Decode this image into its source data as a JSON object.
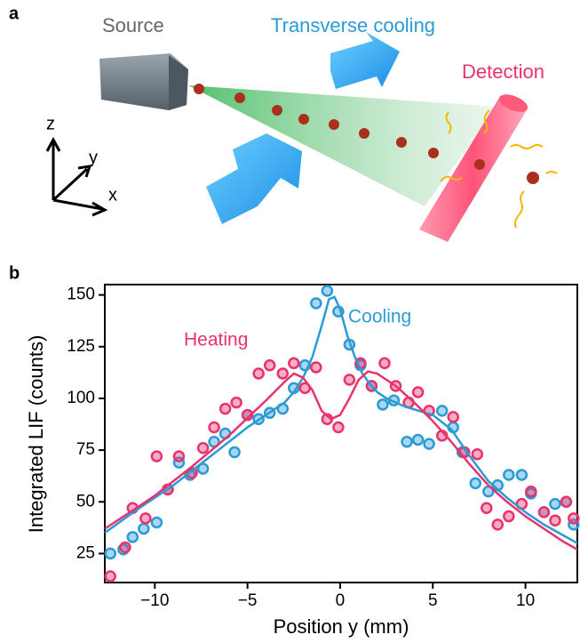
{
  "panel_a": {
    "label": "a",
    "source": "Source",
    "cooling": "Transverse cooling",
    "detection": "Detection",
    "axis_z": "z",
    "axis_y": "y",
    "axis_x": "x"
  },
  "chart_data": {
    "type": "scatter",
    "panel_label": "b",
    "x_label": "Position y (mm)",
    "y_label": "Integrated LIF (counts)",
    "xlim": [
      -12.7,
      12.8
    ],
    "ylim": [
      11,
      155
    ],
    "xticks": [
      {
        "value": -10,
        "label": "−10"
      },
      {
        "value": -5,
        "label": "−5"
      },
      0,
      5,
      10
    ],
    "yticks": [
      25,
      50,
      75,
      100,
      125,
      150
    ],
    "series": [
      {
        "name": "Cooling",
        "color": "#2b9bd6",
        "x": [
          -12.4,
          -11.7,
          -11.2,
          -10.6,
          -9.9,
          -9.3,
          -8.7,
          -8.1,
          -7.4,
          -6.8,
          -6.2,
          -5.7,
          -5.0,
          -4.4,
          -3.8,
          -3.1,
          -2.5,
          -1.9,
          -1.3,
          -0.7,
          -0.1,
          0.5,
          1.1,
          1.7,
          2.3,
          2.9,
          3.6,
          4.2,
          4.8,
          5.5,
          6.1,
          6.6,
          7.3,
          8.0,
          8.5,
          9.1,
          9.8,
          10.3,
          11.0,
          11.6,
          12.2,
          12.6
        ],
        "values": [
          25,
          27,
          33,
          37,
          40,
          56,
          69,
          63,
          66,
          79,
          83,
          74,
          92,
          90,
          93,
          95,
          105,
          116,
          146,
          152,
          142,
          126,
          116,
          106,
          97,
          99,
          79,
          80,
          78,
          94,
          86,
          74,
          59,
          55,
          58,
          63,
          63,
          54,
          45,
          49,
          50,
          39
        ],
        "fit_x": [
          -12.7,
          -11,
          -10,
          -9,
          -7,
          -5,
          -4,
          -3,
          -2.5,
          -2,
          -1.5,
          -1,
          -0.6,
          -0.3,
          0,
          0.4,
          0.8,
          1.2,
          1.6,
          2,
          2.5,
          3.5,
          5,
          6,
          7,
          8,
          9,
          10,
          11,
          12,
          12.8
        ],
        "fit": [
          35,
          46,
          52,
          58,
          72,
          86,
          92,
          98,
          103,
          110,
          120,
          135,
          148,
          149,
          143,
          130,
          120,
          112,
          107,
          103,
          100,
          96,
          92,
          85,
          72,
          60,
          52,
          45,
          39,
          34,
          30
        ]
      },
      {
        "name": "Heating",
        "color": "#e8336d",
        "x": [
          -12.4,
          -11.6,
          -11.2,
          -10.5,
          -9.9,
          -9.3,
          -8.7,
          -8.0,
          -7.4,
          -6.8,
          -6.2,
          -5.6,
          -5.0,
          -4.4,
          -3.8,
          -3.1,
          -2.5,
          -1.9,
          -1.3,
          -0.7,
          -0.1,
          0.5,
          1.1,
          1.7,
          2.4,
          3.0,
          3.7,
          4.2,
          4.8,
          5.5,
          6.1,
          6.7,
          7.4,
          7.9,
          8.5,
          9.1,
          9.8,
          10.3,
          11.0,
          11.6,
          12.2,
          12.6
        ],
        "values": [
          14,
          28,
          47,
          42,
          72,
          56,
          72,
          64,
          76,
          86,
          95,
          98,
          92,
          112,
          116,
          112,
          117,
          105,
          115,
          90,
          86,
          109,
          117,
          106,
          117,
          106,
          98,
          103,
          94,
          82,
          91,
          74,
          73,
          47,
          39,
          43,
          49,
          55,
          45,
          41,
          50,
          42
        ],
        "fit_x": [
          -12.7,
          -11,
          -10,
          -8,
          -6,
          -4,
          -3,
          -2.5,
          -2,
          -1.5,
          -1,
          -0.5,
          0,
          0.5,
          1,
          1.5,
          2,
          3,
          4,
          5,
          6,
          7,
          8,
          9,
          10,
          11,
          12,
          12.8
        ],
        "fit": [
          37,
          47,
          53,
          67,
          82,
          99,
          108,
          112,
          110,
          104,
          94,
          90,
          92,
          100,
          109,
          113,
          112,
          106,
          98,
          89,
          79,
          68,
          58,
          50,
          43,
          37,
          31,
          27
        ]
      }
    ]
  }
}
